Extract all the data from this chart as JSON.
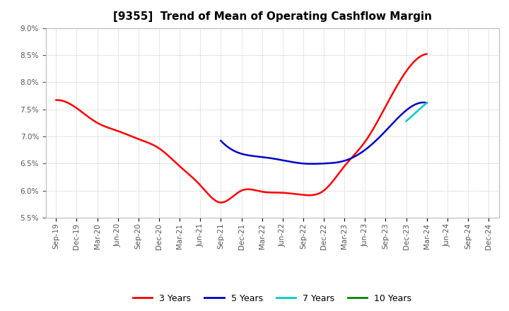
{
  "title": "[9355]  Trend of Mean of Operating Cashflow Margin",
  "background_color": "#ffffff",
  "plot_background_color": "#ffffff",
  "grid_color": "#aaaaaa",
  "ylim": [
    0.055,
    0.09
  ],
  "yticks": [
    0.055,
    0.06,
    0.065,
    0.07,
    0.075,
    0.08,
    0.085,
    0.09
  ],
  "xtick_labels": [
    "Sep-19",
    "Dec-19",
    "Mar-20",
    "Jun-20",
    "Sep-20",
    "Dec-20",
    "Mar-21",
    "Jun-21",
    "Sep-21",
    "Dec-21",
    "Mar-22",
    "Jun-22",
    "Sep-22",
    "Dec-22",
    "Mar-23",
    "Jun-23",
    "Sep-23",
    "Dec-23",
    "Mar-24",
    "Jun-24",
    "Sep-24",
    "Dec-24"
  ],
  "series": {
    "3 Years": {
      "color": "#ff0000",
      "linewidth": 1.8,
      "values": [
        0.0767,
        0.0752,
        0.0725,
        0.071,
        0.0695,
        0.0678,
        0.0645,
        0.061,
        0.0578,
        0.06,
        0.0598,
        0.0596,
        0.0592,
        0.06,
        0.0645,
        0.069,
        0.0755,
        0.082,
        0.0852,
        null,
        null,
        null
      ]
    },
    "5 Years": {
      "color": "#0000cc",
      "linewidth": 1.8,
      "values": [
        null,
        null,
        null,
        null,
        null,
        null,
        null,
        null,
        0.0692,
        0.0668,
        0.0662,
        0.0656,
        0.065,
        0.065,
        0.0655,
        0.0675,
        0.071,
        0.0748,
        0.0762,
        null,
        null,
        null
      ]
    },
    "7 Years": {
      "color": "#00cccc",
      "linewidth": 1.8,
      "values": [
        null,
        null,
        null,
        null,
        null,
        null,
        null,
        null,
        null,
        null,
        null,
        null,
        null,
        null,
        null,
        null,
        null,
        0.0728,
        0.0762,
        null,
        null,
        null
      ]
    },
    "10 Years": {
      "color": "#008800",
      "linewidth": 1.8,
      "values": [
        null,
        null,
        null,
        null,
        null,
        null,
        null,
        null,
        null,
        null,
        null,
        null,
        null,
        null,
        null,
        null,
        null,
        null,
        null,
        null,
        null,
        null
      ]
    }
  },
  "legend": {
    "labels": [
      "3 Years",
      "5 Years",
      "7 Years",
      "10 Years"
    ],
    "colors": [
      "#ff0000",
      "#0000cc",
      "#00cccc",
      "#008800"
    ],
    "ncol": 4,
    "fontsize": 9
  },
  "title_fontsize": 11,
  "tick_fontsize": 7.5,
  "axis_label_color": "#555555"
}
